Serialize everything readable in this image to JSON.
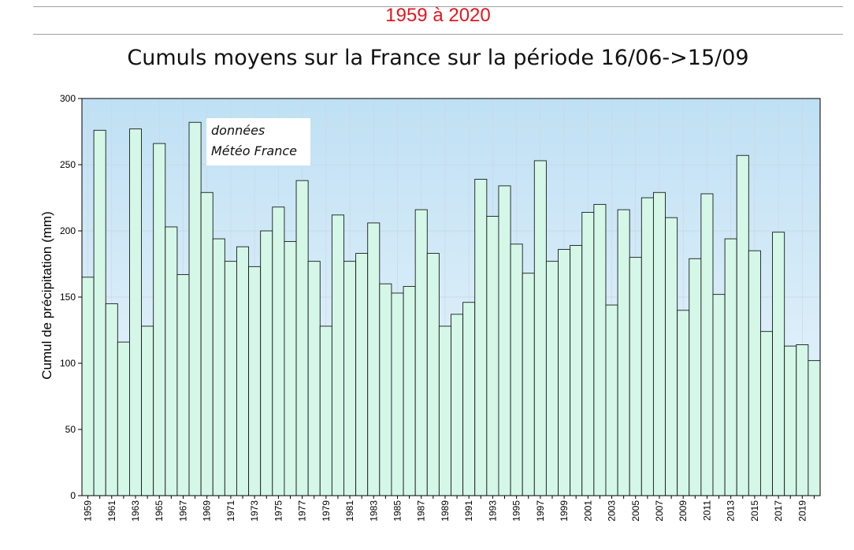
{
  "header": {
    "period": "1959 à 2020",
    "title": "Cumuls moyens sur la France sur la période 16/06->15/09"
  },
  "annotation": {
    "line1": "données",
    "line2": "Météo France"
  },
  "chart_data": {
    "type": "bar",
    "ylabel": "Cumul de précipitation (mm)",
    "xlabel": "",
    "ylim": [
      0,
      300
    ],
    "yticks": [
      0,
      50,
      100,
      150,
      200,
      250,
      300
    ],
    "grid": true,
    "categories": [
      1959,
      1960,
      1961,
      1962,
      1963,
      1964,
      1965,
      1966,
      1967,
      1968,
      1969,
      1970,
      1971,
      1972,
      1973,
      1974,
      1975,
      1976,
      1977,
      1978,
      1979,
      1980,
      1981,
      1982,
      1983,
      1984,
      1985,
      1986,
      1987,
      1988,
      1989,
      1990,
      1991,
      1992,
      1993,
      1994,
      1995,
      1996,
      1997,
      1998,
      1999,
      2000,
      2001,
      2002,
      2003,
      2004,
      2005,
      2006,
      2007,
      2008,
      2009,
      2010,
      2011,
      2012,
      2013,
      2014,
      2015,
      2016,
      2017,
      2018,
      2019,
      2020
    ],
    "xtick_labels": [
      "1959",
      "1961",
      "1963",
      "1965",
      "1967",
      "1969",
      "1971",
      "1973",
      "1975",
      "1977",
      "1979",
      "1981",
      "1983",
      "1985",
      "1987",
      "1989",
      "1991",
      "1993",
      "1995",
      "1997",
      "1999",
      "2001",
      "2003",
      "2005",
      "2007",
      "2009",
      "2011",
      "2013",
      "2015",
      "2017",
      "2019"
    ],
    "values": [
      165,
      276,
      145,
      116,
      277,
      128,
      266,
      203,
      167,
      282,
      229,
      194,
      177,
      188,
      173,
      200,
      218,
      192,
      238,
      177,
      128,
      212,
      177,
      183,
      206,
      160,
      153,
      158,
      216,
      183,
      128,
      137,
      146,
      239,
      211,
      234,
      190,
      168,
      253,
      177,
      186,
      189,
      214,
      220,
      144,
      216,
      180,
      225,
      229,
      210,
      140,
      179,
      228,
      152,
      194,
      257,
      185,
      124,
      199,
      113,
      114,
      102
    ],
    "colors": {
      "bar_fill": "#d4f7e8",
      "bar_stroke": "#1a1a1a",
      "bg_top": "#bfe0f4",
      "bg_bottom": "#eef7fc",
      "grid": "#c9d6df"
    }
  }
}
